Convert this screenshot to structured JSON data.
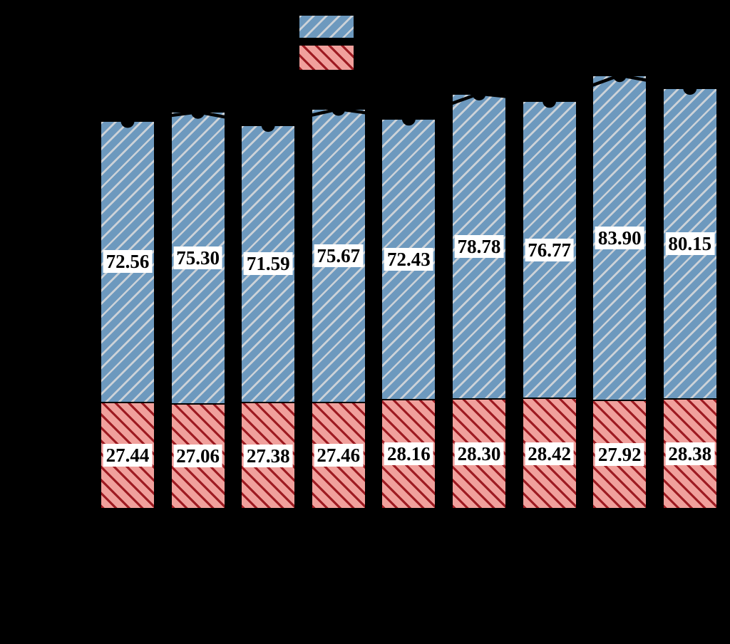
{
  "figure": {
    "background_color": "#000000",
    "axes_visible": false,
    "tick_labels_visible": false
  },
  "legend": {
    "position": "top-center",
    "entries": [
      {
        "name": "blue-series",
        "swatch_color": "#6d99be",
        "hatch": "/",
        "hatch_color": "#ccd2d8",
        "label_text_visible": false
      },
      {
        "name": "red-series",
        "swatch_color": "#f0a09c",
        "hatch": "\\",
        "hatch_color": "#9e1b22",
        "label_text_visible": false
      }
    ]
  },
  "chart_data": {
    "type": "bar",
    "stacked": true,
    "n_bars": 9,
    "series": [
      {
        "name": "blue-top-segment",
        "color": "#6d99be",
        "hatch": "/",
        "hatch_color": "#ccd2d8",
        "values": [
          72.56,
          75.3,
          71.59,
          75.67,
          72.43,
          78.78,
          76.77,
          83.9,
          80.15
        ]
      },
      {
        "name": "red-bottom-segment",
        "color": "#f0a09c",
        "hatch": "\\",
        "hatch_color": "#9e1b22",
        "values": [
          27.44,
          27.06,
          27.38,
          27.46,
          28.16,
          28.3,
          28.42,
          27.92,
          28.38
        ]
      }
    ],
    "overlay_line": {
      "type": "line",
      "marker": "circle",
      "color": "#000000",
      "description": "black line with filled circle markers at the top of each stacked bar (stack totals)",
      "totals": [
        100.0,
        102.36,
        98.97,
        103.13,
        100.59,
        107.08,
        105.19,
        111.82,
        108.53
      ]
    },
    "value_labels": {
      "format": "0.00",
      "background": "#ffffff",
      "text_color": "#000000"
    }
  }
}
